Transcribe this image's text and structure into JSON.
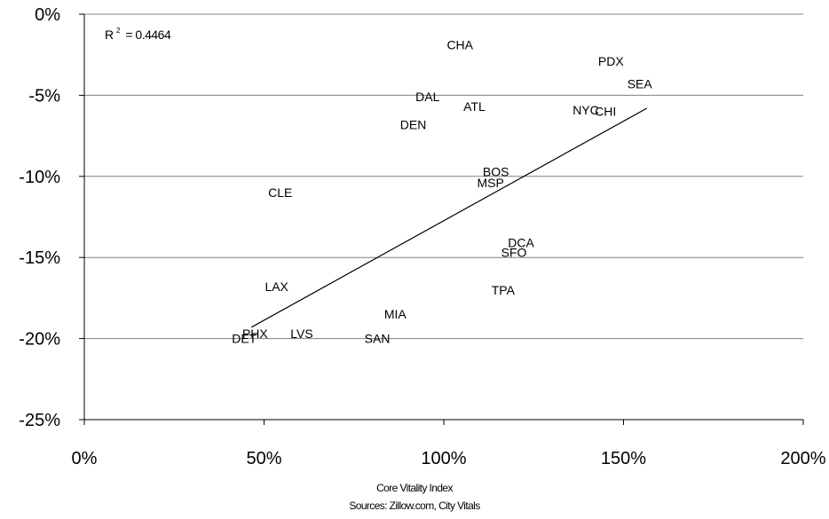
{
  "chart_data": {
    "type": "scatter",
    "title": "",
    "xlabel": "Core Vitality Index",
    "ylabel": "",
    "source": "Sources:  Zillow.com, City Vitals",
    "xlim": [
      0,
      200
    ],
    "ylim": [
      -25,
      0
    ],
    "x_ticks": [
      0,
      50,
      100,
      150,
      200
    ],
    "x_tick_labels": [
      "0%",
      "50%",
      "100%",
      "150%",
      "200%"
    ],
    "y_ticks": [
      0,
      -5,
      -10,
      -15,
      -20,
      -25
    ],
    "y_tick_labels": [
      "0%",
      "-5%",
      "-10%",
      "-15%",
      "-20%",
      "-25%"
    ],
    "grid": "horizontal",
    "r_squared_label": "= 0.4464",
    "r_squared_symbol": "R",
    "r_squared_sup": "2",
    "points": [
      {
        "label": "CHA",
        "x": 104.5,
        "y": -1.9
      },
      {
        "label": "PDX",
        "x": 146.5,
        "y": -2.9
      },
      {
        "label": "SEA",
        "x": 154.5,
        "y": -4.3
      },
      {
        "label": "DAL",
        "x": 95.5,
        "y": -5.1
      },
      {
        "label": "ATL",
        "x": 108.5,
        "y": -5.7
      },
      {
        "label": "NYC",
        "x": 139.5,
        "y": -5.9
      },
      {
        "label": "CHI",
        "x": 145.0,
        "y": -6.0
      },
      {
        "label": "DEN",
        "x": 91.5,
        "y": -6.8
      },
      {
        "label": "BOS",
        "x": 114.5,
        "y": -9.7
      },
      {
        "label": "MSP",
        "x": 113.0,
        "y": -10.4
      },
      {
        "label": "CLE",
        "x": 54.5,
        "y": -11.0
      },
      {
        "label": "DCA",
        "x": 121.5,
        "y": -14.1
      },
      {
        "label": "SFO",
        "x": 119.5,
        "y": -14.7
      },
      {
        "label": "LAX",
        "x": 53.5,
        "y": -16.8
      },
      {
        "label": "TPA",
        "x": 116.5,
        "y": -17.0
      },
      {
        "label": "MIA",
        "x": 86.5,
        "y": -18.5
      },
      {
        "label": "PHX",
        "x": 47.5,
        "y": -19.7
      },
      {
        "label": "LVS",
        "x": 60.5,
        "y": -19.7
      },
      {
        "label": "DET",
        "x": 44.5,
        "y": -20.0
      },
      {
        "label": "SAN",
        "x": 81.5,
        "y": -20.0
      }
    ],
    "trendline": {
      "x": [
        46.5,
        156.5
      ],
      "y": [
        -19.3,
        -5.8
      ]
    }
  }
}
